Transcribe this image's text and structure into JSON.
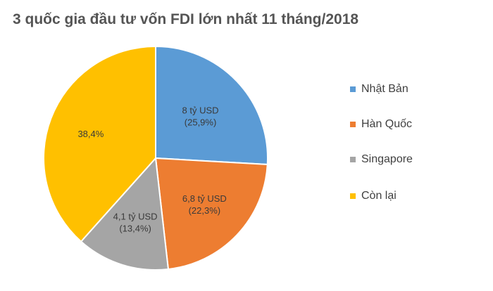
{
  "chart_data": {
    "type": "pie",
    "title": "3 quốc gia đầu tư vốn FDI lớn nhất 11 tháng/2018",
    "legend_position": "right",
    "slices": [
      {
        "name": "Nhật Bản",
        "value": 25.9,
        "label_lines": [
          "8 tỷ USD",
          "(25,9%)"
        ],
        "color": "#5B9BD5"
      },
      {
        "name": "Hàn Quốc",
        "value": 22.3,
        "label_lines": [
          "6,8 tỷ USD",
          "(22,3%)"
        ],
        "color": "#ED7D31"
      },
      {
        "name": "Singapore",
        "value": 13.4,
        "label_lines": [
          "4,1 tỷ USD",
          "(13,4%)"
        ],
        "color": "#A5A5A5"
      },
      {
        "name": "Còn lại",
        "value": 38.4,
        "label_lines": [
          "38,4%"
        ],
        "color": "#FFC000"
      }
    ]
  }
}
